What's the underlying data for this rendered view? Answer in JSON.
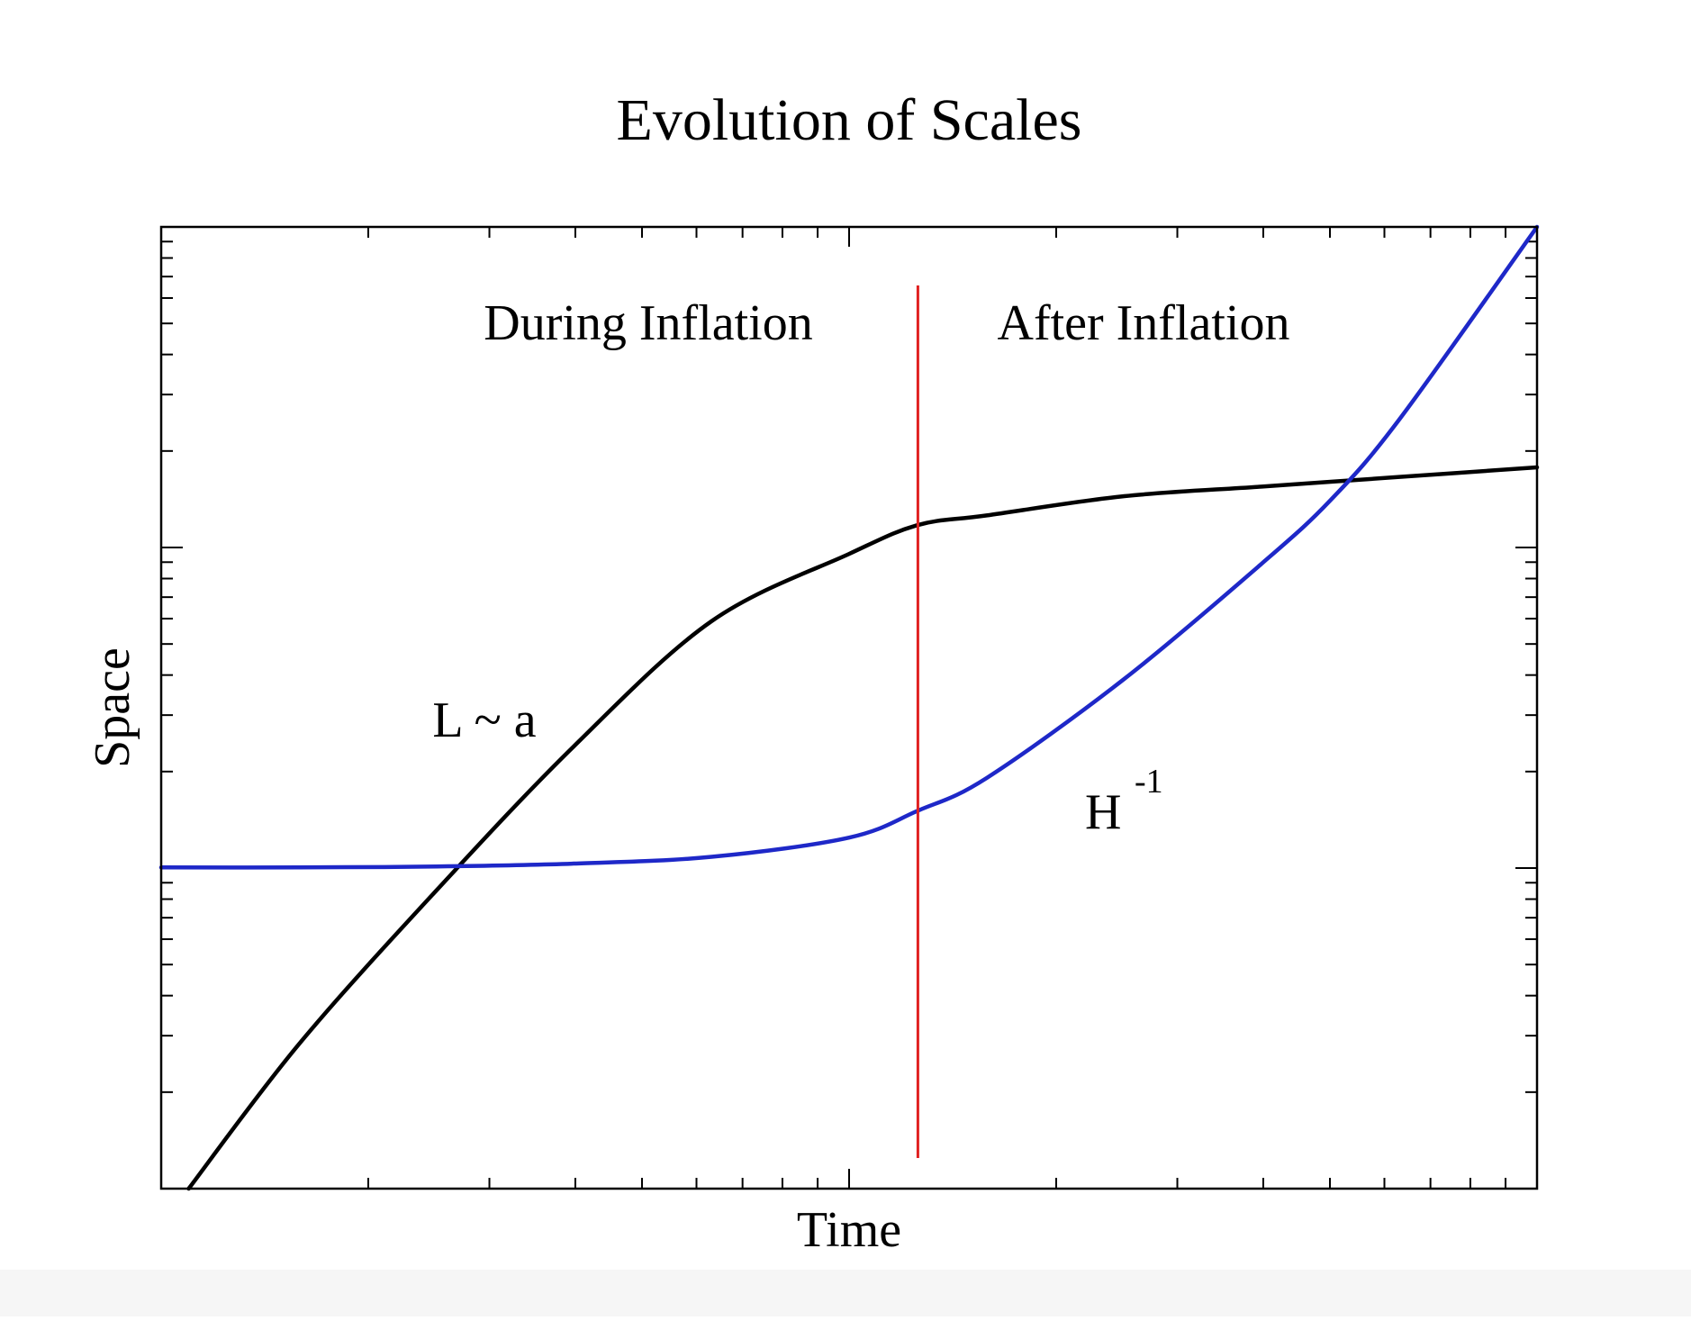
{
  "chart_data": {
    "type": "line",
    "title": "Evolution of Scales",
    "xlabel": "Time",
    "ylabel": "Space",
    "x_scale": "log",
    "y_scale": "log",
    "tick_labels_shown": false,
    "grid": false,
    "legend": "none",
    "xlim": [
      0,
      1
    ],
    "ylim": [
      0,
      1
    ],
    "series": [
      {
        "name": "L ~ a",
        "color": "#000000",
        "x": [
          0.02,
          0.1,
          0.2,
          0.3,
          0.4,
          0.5,
          0.55,
          0.6,
          0.7,
          0.8,
          0.9,
          1.0
        ],
        "y": [
          0.0,
          0.15,
          0.31,
          0.46,
          0.59,
          0.66,
          0.69,
          0.7,
          0.72,
          0.73,
          0.74,
          0.75
        ]
      },
      {
        "name": "H-1",
        "color": "#1e28c8",
        "x": [
          0.0,
          0.1,
          0.2,
          0.3,
          0.4,
          0.5,
          0.55,
          0.6,
          0.7,
          0.8,
          0.85,
          0.9,
          1.0
        ],
        "y": [
          0.334,
          0.334,
          0.335,
          0.338,
          0.345,
          0.365,
          0.393,
          0.427,
          0.53,
          0.65,
          0.716,
          0.8,
          1.0
        ]
      }
    ],
    "vertical_line": {
      "x": 0.55,
      "color": "#e02020"
    },
    "annotations": [
      {
        "text": "During Inflation"
      },
      {
        "text": "After Inflation"
      },
      {
        "text": "L ~ a"
      },
      {
        "text": "H",
        "superscript": "-1"
      }
    ]
  }
}
